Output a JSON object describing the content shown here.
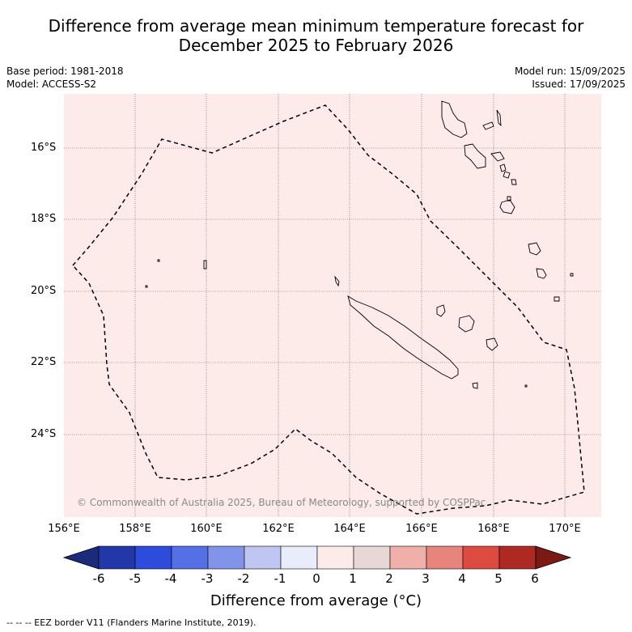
{
  "title": {
    "line1": "Difference from average mean minimum temperature forecast for",
    "line2": "December 2025 to February 2026"
  },
  "meta_left": {
    "base_period": "Base period: 1981-2018",
    "model": "Model: ACCESS-S2"
  },
  "meta_right": {
    "model_run": "Model run: 15/09/2025",
    "issued": "Issued: 17/09/2025"
  },
  "map": {
    "lat_labels": [
      "16°S",
      "18°S",
      "20°S",
      "22°S",
      "24°S"
    ],
    "lon_labels": [
      "156°E",
      "158°E",
      "160°E",
      "162°E",
      "164°E",
      "166°E",
      "168°E",
      "170°E"
    ],
    "fill_color": "#fcebe9",
    "anomaly_category": "0 to 1",
    "copyright": "© Commonwealth of Australia 2025, Bureau of Meteorology, supported by COSPPac"
  },
  "colorbar": {
    "labels": [
      "-6",
      "-5",
      "-4",
      "-3",
      "-2",
      "-1",
      "0",
      "1",
      "2",
      "3",
      "4",
      "5",
      "6"
    ],
    "colors": [
      "#1b2a7a",
      "#2238a8",
      "#2e4cdc",
      "#5570e6",
      "#8294ea",
      "#bfc6f2",
      "#e8ecfb",
      "#fcebe9",
      "#e9d6d6",
      "#efb0aa",
      "#e7857d",
      "#dc4a40",
      "#ae2921",
      "#7b1a14"
    ],
    "title": "Difference from average (°C)"
  },
  "footer": "-- -- -- EEZ border V11 (Flanders Marine Institute, 2019)."
}
